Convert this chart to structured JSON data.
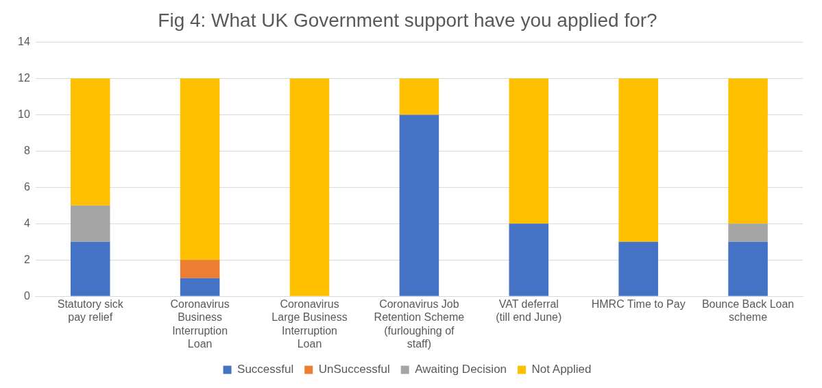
{
  "chart_data": {
    "type": "bar",
    "stacked": true,
    "title": "Fig 4: What UK Government support have you applied for?",
    "categories": [
      "Statutory sick pay relief",
      "Coronavirus Business Interruption Loan",
      "Coronavirus Large Business Interruption Loan",
      "Coronavirus Job Retention Scheme (furloughing of staff)",
      "VAT deferral (till end June)",
      "HMRC Time to Pay",
      "Bounce Back Loan scheme"
    ],
    "series": [
      {
        "name": "Successful",
        "color": "#4472c4",
        "values": [
          3,
          1,
          0,
          10,
          4,
          3,
          3
        ]
      },
      {
        "name": "UnSuccessful",
        "color": "#ed7d31",
        "values": [
          0,
          1,
          0,
          0,
          0,
          0,
          0
        ]
      },
      {
        "name": "Awaiting Decision",
        "color": "#a5a5a5",
        "values": [
          2,
          0,
          0,
          0,
          0,
          0,
          1
        ]
      },
      {
        "name": "Not Applied",
        "color": "#ffc000",
        "values": [
          7,
          10,
          12,
          2,
          8,
          9,
          8
        ]
      }
    ],
    "ylim": [
      0,
      14
    ],
    "yticks": [
      0,
      2,
      4,
      6,
      8,
      10,
      12,
      14
    ],
    "grid": "y",
    "legend": "bottom"
  }
}
